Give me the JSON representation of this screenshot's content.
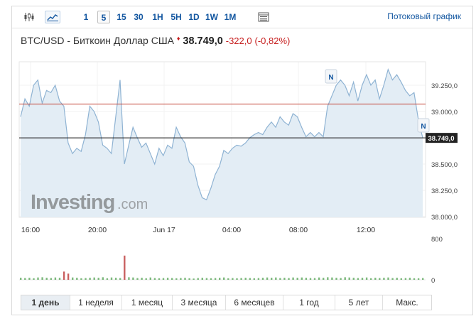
{
  "toolbar": {
    "timeframes": [
      "1",
      "5",
      "15",
      "30",
      "1H",
      "5H",
      "1D",
      "1W",
      "1M"
    ],
    "active_timeframe": "5",
    "stream_label": "Потоковый график",
    "icons": [
      "candlestick-icon",
      "line-chart-icon",
      "table-icon"
    ]
  },
  "quote": {
    "name": "BTC/USD - Биткоин Доллар США",
    "price": "38.749,0",
    "change": "-322,0",
    "change_pct": "(-0,82%)",
    "direction_arrow": "♦"
  },
  "watermark": {
    "brand": "Investing",
    "suffix": ".com"
  },
  "markers": [
    "N",
    "N"
  ],
  "colors": {
    "area_fill": "#e3edf5",
    "line": "#8fb3d3",
    "prev_close": "#c0392b",
    "volume_up": "#7cb87c",
    "volume_down": "#c96060"
  },
  "chart_data": {
    "type": "area",
    "title": "",
    "xlabel": "",
    "ylabel": "",
    "x_ticks": [
      "16:00",
      "20:00",
      "Jun 17",
      "04:00",
      "08:00",
      "12:00"
    ],
    "y_ticks": [
      "39.250,0",
      "39.000,0",
      "38.750,0",
      "38.500,0",
      "38.250,0",
      "38.000,0"
    ],
    "ylim": [
      38000,
      39500
    ],
    "prev_close": 39071,
    "last_price": 38749,
    "last_price_label": "38.749,0",
    "series": [
      {
        "values": [
          38950,
          39120,
          39050,
          39250,
          39300,
          39080,
          39200,
          39180,
          39250,
          39100,
          39050,
          38700,
          38600,
          38650,
          38620,
          38780,
          39050,
          39000,
          38900,
          38680,
          38650,
          38600,
          38950,
          39300,
          38500,
          38680,
          38850,
          38750,
          38660,
          38700,
          38600,
          38500,
          38650,
          38580,
          38680,
          38650,
          38850,
          38760,
          38700,
          38520,
          38480,
          38300,
          38180,
          38160,
          38270,
          38400,
          38480,
          38630,
          38600,
          38650,
          38680,
          38670,
          38700,
          38750,
          38780,
          38800,
          38780,
          38850,
          38900,
          38850,
          38950,
          38900,
          38870,
          38980,
          38950,
          38850,
          38760,
          38800,
          38760,
          38800,
          38760,
          39050,
          39150,
          39250,
          39300,
          39250,
          39150,
          39280,
          39100,
          39250,
          39350,
          39250,
          39300,
          39120,
          39250,
          39400,
          39300,
          39350,
          39280,
          39200,
          39150,
          39180,
          38920,
          38749
        ]
      }
    ],
    "volume": {
      "y_ticks": [
        "800",
        "0"
      ],
      "ylim": [
        0,
        800
      ],
      "values": [
        40,
        35,
        40,
        30,
        45,
        50,
        40,
        35,
        45,
        40,
        160,
        120,
        45,
        40,
        30,
        35,
        40,
        45,
        40,
        50,
        30,
        45,
        40,
        35,
        470,
        50,
        45,
        35,
        40,
        30,
        45,
        35,
        30,
        35,
        40,
        35,
        30,
        35,
        40,
        30,
        25,
        35,
        40,
        35,
        30,
        35,
        40,
        45,
        30,
        35,
        30,
        35,
        40,
        35,
        30,
        35,
        40,
        45,
        40,
        45,
        35,
        40,
        35,
        45,
        40,
        45,
        40,
        35,
        35,
        45,
        40,
        50,
        45,
        40,
        35,
        50,
        45,
        40,
        35,
        40,
        45,
        30,
        40,
        35,
        40,
        45,
        35,
        40,
        30,
        35,
        40,
        30,
        30,
        35
      ],
      "down": [
        10,
        11,
        24
      ]
    }
  },
  "range_tabs": [
    "1 день",
    "1 неделя",
    "1 месяц",
    "3 месяца",
    "6 месяцев",
    "1 год",
    "5 лет",
    "Макс."
  ],
  "active_range": "1 день"
}
